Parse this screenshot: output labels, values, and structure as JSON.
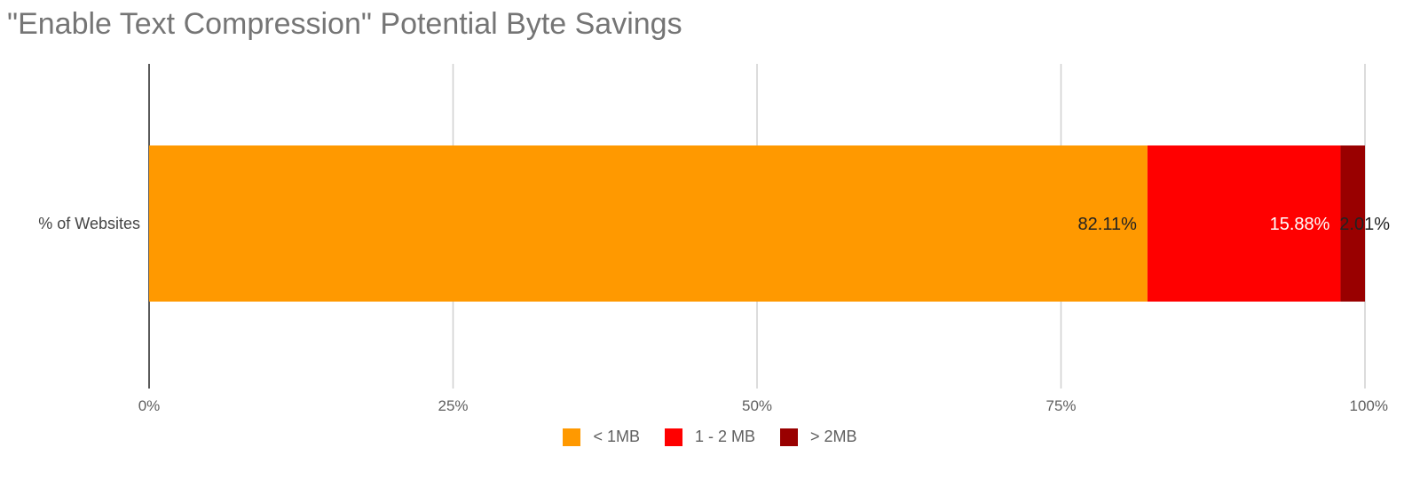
{
  "chart_data": {
    "type": "bar",
    "orientation": "horizontal",
    "stacked": true,
    "title": "\"Enable Text Compression\" Potential Byte Savings",
    "categories": [
      "% of Websites"
    ],
    "series": [
      {
        "name": "< 1MB",
        "values": [
          82.11
        ],
        "color": "#ff9900",
        "label": "82.11%",
        "label_color": "#222222"
      },
      {
        "name": "1 - 2 MB",
        "values": [
          15.88
        ],
        "color": "#ff0000",
        "label": "15.88%",
        "label_color": "#ffffff"
      },
      {
        "name": "> 2MB",
        "values": [
          2.01
        ],
        "color": "#990000",
        "label": "2.01%",
        "label_color": "#222222"
      }
    ],
    "xlim": [
      0,
      100
    ],
    "x_ticks": [
      {
        "value": 0,
        "label": "0%"
      },
      {
        "value": 25,
        "label": "25%"
      },
      {
        "value": 50,
        "label": "50%"
      },
      {
        "value": 75,
        "label": "75%"
      },
      {
        "value": 100,
        "label": "100%"
      }
    ],
    "grid": true,
    "legend_position": "bottom"
  }
}
